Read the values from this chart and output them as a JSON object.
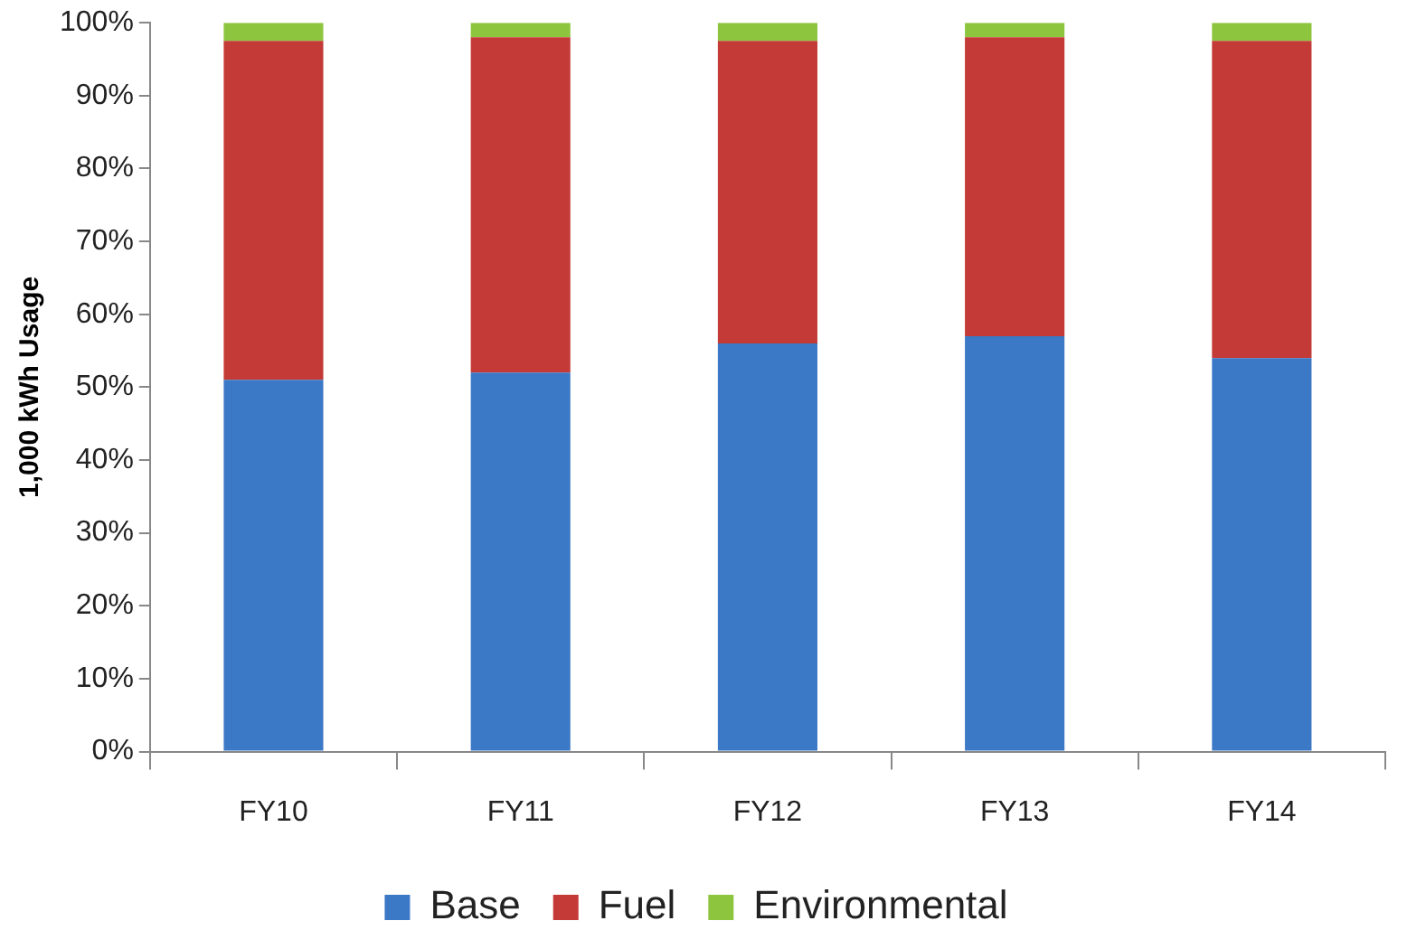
{
  "chart_data": {
    "type": "bar",
    "stacked": true,
    "ylabel": "1,000 kWh Usage",
    "categories": [
      "FY10",
      "FY11",
      "FY12",
      "FY13",
      "FY14"
    ],
    "series": [
      {
        "name": "Base",
        "color": "#3b78c6",
        "values": [
          51,
          52,
          56,
          57,
          54
        ]
      },
      {
        "name": "Fuel",
        "color": "#c33a36",
        "values": [
          46.5,
          46,
          41.5,
          41,
          43.5
        ]
      },
      {
        "name": "Environmental",
        "color": "#8dc53e",
        "values": [
          2.5,
          2,
          2.5,
          2,
          2.5
        ]
      }
    ],
    "ylim": [
      0,
      100
    ],
    "yticks": [
      {
        "value": 0,
        "label": "0%"
      },
      {
        "value": 10,
        "label": "10%"
      },
      {
        "value": 20,
        "label": "20%"
      },
      {
        "value": 30,
        "label": "30%"
      },
      {
        "value": 40,
        "label": "40%"
      },
      {
        "value": 50,
        "label": "50%"
      },
      {
        "value": 60,
        "label": "60%"
      },
      {
        "value": 70,
        "label": "70%"
      },
      {
        "value": 80,
        "label": "80%"
      },
      {
        "value": 90,
        "label": "90%"
      },
      {
        "value": 100,
        "label": "100%"
      }
    ],
    "grid": false,
    "legend": "bottom"
  }
}
